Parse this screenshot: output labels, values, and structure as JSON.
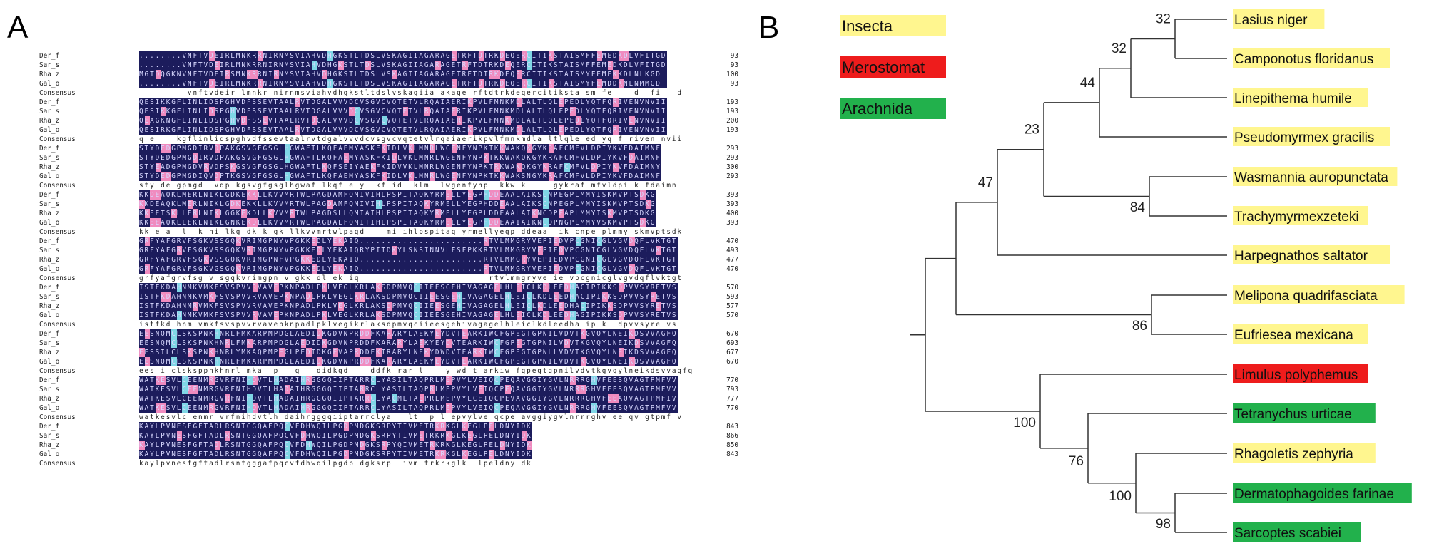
{
  "panels": {
    "a_label": "A",
    "b_label": "B"
  },
  "alignment": {
    "names": [
      "Der_f",
      "Sar_s",
      "Rha_z",
      "Gal_o",
      "Consensus"
    ],
    "blocks": [
      {
        "ends": [
          "93",
          "93",
          "100",
          "93"
        ],
        "seqs": [
          "........VNFTVDEIRLMNKRRNIRNMSVIAHVDHGKSTLTDSLVSKAGIIAGARAGETRFTDTRKDEQERCITIKSTAISMFFEMEDKDLVFITGD",
          "........VNFTVDEIRLMNKRRNIRNMSVIAHVDHGKSTLTDSLVSKAGIIAGARAGETRFTDTRKDEQERCITIKSTAISMFFEMEDKDLVFITGD",
          "MGTDQGKNVNFTVDEIRSMNKRRNIRNMSVIAHVDHGKSTLTDSLVSKAGIIAGARAGETRFTDTRKDEQERCITIKSTAISMYFEMEKKDLNLKGD",
          "........VNFTVDEIRLMNKRRNIRNMSVIAHVDHGKSTLTDSLVSKAGIIAGARAGETRFTDTRKDEQERCITIKSTAISMYFEMDDKNLNMMGD"
        ],
        "consensus": "         vnftvdeir lmnkr nirnmsviahvdhgkstltdslvskagiia akage rftdtrkdeqercitiksta sm fe    d  fi   d"
      },
      {
        "ends": [
          "193",
          "193",
          "200",
          "193"
        ],
        "seqs": [
          "QESIKKGFLINLIDSPGHVDFSSEVTAALRVTDGALVVVDCVSGVCVQTETVLRQAIAERIKPVLFMNKMDLALTLQLEPEDLYQTFQRIVENVNVII",
          "QESIKKGFLINLIDSPGHVDFSSEVTAALRVTDGALVVVDCVSGVCVQTETVLRQAIAERIKPVLFMNKMDLALTLQLEPEDLYQTFQRIVENVNVII",
          "QEAGKNGFLINLIDSPGHVDFSSEVTAALRVTDGALVVVDCVSGVCVQTETVLRQAIAERIKPVLFMNKMDLALTLQLEPEDLYQTFQRIVENVNVII",
          "QESIRKGFLINLIDSPGHVDFSSEVTAALRVTDGALVVVDCVSGVCVQTETVLRQAIAERIKPVLFMNKMDLALTLQLEPEDLYQTFQRIVENVNVII"
        ],
        "consensus": "q e    kgflinlidspghvdfssevtaalrvtdgalvvvdcvsgvcvqtetvlrqaiaerikpvlfmnkmdla ltlqle ed yq f riven nvii"
      },
      {
        "ends": [
          "293",
          "293",
          "300",
          "293"
        ],
        "seqs": [
          "STYDEDGPMGDIRVDPAKGSVGFGSGLHGWAFTLKQFAEMYASKFKIDLVKLMNRLWGENFYNPKTKKWAKQKGYKRAFCMFVLDPIYKVFDAIMNF",
          "STYDEDGPMGDIRVDPAKGSVGFGSGLHGWAFTLKQFAEMYASKFKIDLVKLMNRLWGENFYNPKTKKWAKQKGYKRAFCMFVLDPIYKVFDAIMNF",
          "STYEADGPMGDVRVDPSKGSVGFGSGLHGWAFTLKQFSEIYAEKFKIDVVKLMNRLWGENFYNPKTRKWAKQKGYKRAFCMFVLDPIYKVFDAIMNY",
          "STYDEDGPMGDIQVDPTKGSVGFGSGLHGWAFTLKQFAEMYASKFKIDLVKLMNRLWGENFYNPKTKKWAKSNGYKRAFCMFVLDPIYKVFDAIMNF"
        ],
        "consensus": "sty de gpmgd  vdp kgsvgfgsglhgwaf lkqf e y  kf id  klm  lwgenfynp  kkw k     gykraf mfvldpi k fdaimn"
      },
      {
        "ends": [
          "393",
          "393",
          "400",
          "393"
        ],
        "seqs": [
          "KKDEAQKLMERLNIKLGDKEKKLLKVVMRTWLPAGDAMFQMIVIHLPSPITAQKYRMELLYEGPHDDEAALAIKSCNPEGPLMMYISKMVPTSDKG",
          "KKDEAQKLMERLNIKLGDKEKKLLKVVMRTWLPAGDAMFQMIVIHLPSPITAQKYRMELLYEGPHDDEAALAIKSCNPEGPLMMYISKMVPTSDKG",
          "KKEETSKLLERLNIKLGGKEKDLLKVVMRTWLPAGDSLLQMIAIHLPSPITAQKYRMELLYEGPLDDEAALAIKNCDPEAPLMMYISKMVPTSDKG",
          "KKEEAQKLLEKLNIKLGNKEKDLLKVVMRTWLPAGDALFQMITIHLPSPITAQKYRMELLYEGPHDDEAAIAIKNCDPNGPLMMYVSKMVPTSDKG"
        ],
        "consensus": "kk e a  l  k ni lkg dk k gk llkvvmrtwlpagd    mi ihlpspitaq yrmellyegp ddeaa  ik cnpe plmmy skmvptsdk"
      },
      {
        "ends": [
          "470",
          "493",
          "477",
          "470"
        ],
        "seqs": [
          "GRFYAFGRVFSGKVSSGQKVRIMGPNYVPGKKEDLYEKAIQ.......................RTVLMMGRYVEPIEDVPCGNICGLVGVDQFLVKTGT",
          "GRFYAFGRVFSGKVSSGQKVRIMGPNYVPGKKEDLYEKAIQRYPITDKYLSNSINNVLFSFPKKRTVLMMGRYVEPIEDVPCGNICGLVGVDQFLVKTGT",
          "GRFYAFGRVFSGKVSSGQKVRIMGPNFVPGKKEDLYEKAIQ.......................RTVLMMGRYVEPIEDVPCGNICGLVGVDQFLVKTGT",
          "GRFYAFGRVFSGKVGSGQKVRIMGPNYVPGKKEDLYEKAIQ.......................RTVLMMGRYVEPIEDVPCGNICGLVGVDQFLVKTGT"
        ],
        "consensus": "grfyafgrvfsg v sgqkvrimgpn v gkk dl ek iq                        rtvlmmgryve ie vpcgnicglvgvdqflvktgt"
      },
      {
        "ends": [
          "570",
          "593",
          "577",
          "570"
        ],
        "seqs": [
          "ISTFKDAHNMKVMKFSVSPVVRVAVEPKNPADLPKLVEGLKRLAKSDPMVQCIIEESGEHIVAGAGELHLEICLKDLEEDHACIPIKKSDPVVSYRETVS",
          "ISTFKDAHNMKVMKFSVSPVVRVAVEPKNPADLPKLVEGLKRLAKSDPMVQCIIEESGEHIVAGAGELHLEICLKDLEEDHACIPIKKSDPVVSYRETVS",
          "ISTFKDAHNMRVMKFSVSPVVRVAVEPKNPADLPKLVEGLKRLAKSDPMVQCIIEESGEHIVAGAGELHLEICLKDLEEDHACIPIKKSDPVVSYRETVS",
          "ISTFKDAHNMKVMKFSVSPVVRVAVEPKNPADLPKLVEGLKRLAKSDPMVQCIIEESGEHIVAGAGELHLEICLKDLEEDHAGIPIKKSDPVVSYRETVS"
        ],
        "consensus": "istfkd hnm vmkfsvspvvrvavepknpadlpklvegikrlaksdpmvqciieesgehivagagelhleiclkdleedha ip k  dpvvsyre vs"
      },
      {
        "ends": [
          "670",
          "693",
          "677",
          "670"
        ],
        "seqs": [
          "EESNQMCLSKSPNKHNRLFMKARPMPDGLAEDIDKGDVNPRDDFKARARYLAEKYEYDVTEARKIWCFGPEGTGPNILVDVTKGVQYLNEIKDSVVAGFQ",
          "EESNQMCLSKSPNKHNRLFMKARPMPDGLAEDIDKGDVNPRDDFKARARYLAEKYEYDVTEARKIWCFGPEGTGPNILVDVTKGVQYLNEIKDSVVAGFQ",
          "EESSILCLSKSPNKHNRLYMKAQPMPEGLPEDIDKGEVAPRDDFKIRARYLNEKYDWDVTEARKIWCFGPEGTGPNLLVDVTKGVQYLNEIKDSVVAGFQ",
          "EESNQMCLSKSPNKHNRLFMKARPMPDGLAEDIDKGDVNPRDDFKARARYLAEKYEYDVTEARKIWCFGPEGTGPNILVDVTKGVQYLNEIKDSVVAGFQ"
        ],
        "consensus": "ees i clsksppnkhnrl mka  p   g   didkgd    ddfk rar l    y wd t arkiw fgpegtgpnilvdvtkgvqylneikdsvvagfq"
      },
      {
        "ends": [
          "770",
          "793",
          "777",
          "770"
        ],
        "seqs": [
          "WATKESVLCEENMRGVRFNIHDVTLHADAIHRGGGQIIPTARRCLYASILTAQPRLMEPVYLVEIQCPEQAVGGIYGVLNRRRGHVFEESQVAGTPMFVV",
          "WATKESVLCEENMRGVRFNIHDVTLHADAIHRGGGQIIPTARRCLYASILTAQPRLMEPVYLVEIQCPEQAVGGIYGVLNRRRGHVFEESQVAGTPMFVV",
          "WATKESVLCEENMRGVRFNIHDVTLHADAIHRGGGQIIPTARRCLYACMLTAEPRLMEPVYLCEIQCPEVAVGGIYGVLNRRRGHVFEEAQVAGTPMFIV",
          "WATKESVLCEENMRGVRFNIHDVTLHADAIHRGGGQIIPTARRCLYASILTAQPRLMEPVYLVEIQCPEQAVGGIYGVLNRRRGHVFEESQVAGTPMFVV"
        ],
        "consensus": "watkesvlc enmr vrfnihdvtlh daihrgggqiiptarrclya   lt  p l epvylve qcpe avggiygvlnrrrghv ee qv gtpmf v"
      },
      {
        "ends": [
          "843",
          "866",
          "850",
          "843"
        ],
        "seqs": [
          "KAYLPVNESFGFTADLRSNTGGQAFPQCVFDHWQILPGDPMDGKSRPYTIVMETRKRKGLKEGLPELDNYIDK",
          "KAYLPVNESFGFTADLRSNTGGQAFPQCVFDHWQILPGDPMDGKSRPYTIVMETRKRKGLKEGLPELDNYIDK",
          "KAYLPVNESFGFTADLRSNTGGQAFPQCVFDHWQILPGDPMDGKSRPYQIVMETRKRKGLKEGLPELDNYIDK",
          "KAYLPVNESFGFTADLRSNTGGQAFPQCVFDHWQILPGDPMDGKSRPYTIVMETRKRKGLKEGLPELDNYIDK"
        ],
        "consensus": "kaylpvnesfgftadlrsntgggafpqcvfdhwqilpgdp dgksrp  ivm trkrkglk  lpeldny dk"
      }
    ]
  },
  "legend": [
    {
      "label": "Insecta",
      "color": "#fff68f"
    },
    {
      "label": "Merostomat",
      "color": "#ee1c1c"
    },
    {
      "label": "Arachnida",
      "color": "#22b14c"
    }
  ],
  "taxa": [
    {
      "label": "Lasius niger",
      "group": "Insecta"
    },
    {
      "label": "Camponotus floridanus",
      "group": "Insecta"
    },
    {
      "label": "Linepithema humile",
      "group": "Insecta"
    },
    {
      "label": "Pseudomyrmex gracilis",
      "group": "Insecta"
    },
    {
      "label": "Wasmannia auropunctata",
      "group": "Insecta"
    },
    {
      "label": "Trachymyrmexzeteki",
      "group": "Insecta"
    },
    {
      "label": "Harpegnathos saltator",
      "group": "Insecta"
    },
    {
      "label": "Melipona quadrifasciata",
      "group": "Insecta"
    },
    {
      "label": "Eufriesea mexicana",
      "group": "Insecta"
    },
    {
      "label": "Limulus polyphemus",
      "group": "Merostomat"
    },
    {
      "label": "Tetranychus urticae",
      "group": "Arachnida"
    },
    {
      "label": "Rhagoletis zephyria",
      "group": "Insecta"
    },
    {
      "label": "Dermatophagoides farinae",
      "group": "Arachnida"
    },
    {
      "label": "Sarcoptes scabiei",
      "group": "Arachnida"
    }
  ],
  "bootstrap": {
    "lasius_camponotus": "32",
    "formicinae_linepithema": "32",
    "dolicho_pseudomyrmex": "44",
    "ants_core": "23",
    "wasmannia_trachy": "84",
    "ants_all": "47",
    "bees": "86",
    "non_insect": "100",
    "rhago_mites": "76",
    "mites": "100",
    "mites_inner": "98"
  }
}
